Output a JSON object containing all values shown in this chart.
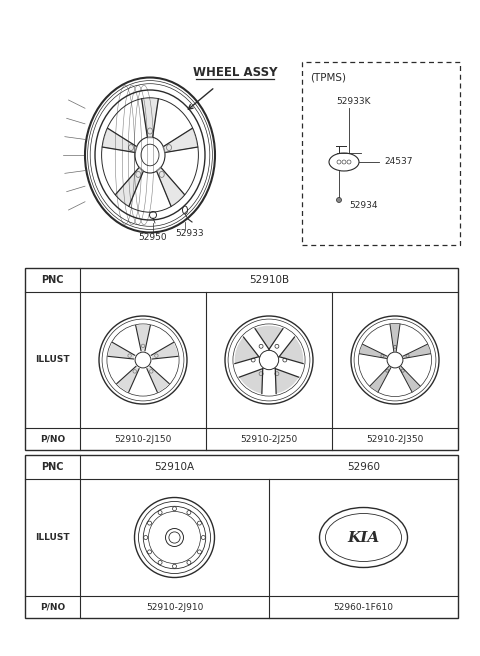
{
  "bg_color": "#ffffff",
  "line_color": "#2b2b2b",
  "title_top": "WHEEL ASSY",
  "tpms_label": "(TPMS)",
  "tpms_parts": [
    "52933K",
    "24537",
    "52934"
  ],
  "wheel_parts_below": [
    "52950",
    "52933"
  ],
  "table1": {
    "pnc": "52910B",
    "pno_values": [
      "52910-2J150",
      "52910-2J250",
      "52910-2J350"
    ]
  },
  "table2": {
    "pnc_values": [
      "52910A",
      "52960"
    ],
    "pno_values": [
      "52910-2J910",
      "52960-1F610"
    ]
  }
}
